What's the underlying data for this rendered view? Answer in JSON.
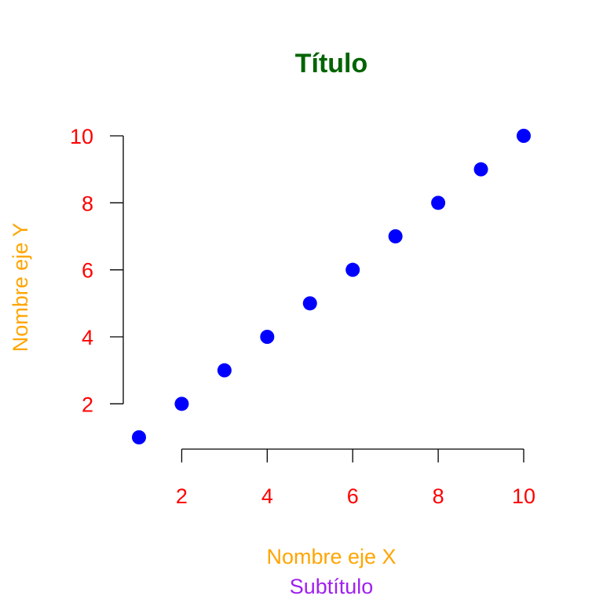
{
  "chart_data": {
    "type": "scatter",
    "title": "Título",
    "subtitle": "Subtítulo",
    "xlabel": "Nombre eje X",
    "ylabel": "Nombre eje Y",
    "x": [
      1,
      2,
      3,
      4,
      5,
      6,
      7,
      8,
      9,
      10
    ],
    "y": [
      1,
      2,
      3,
      4,
      5,
      6,
      7,
      8,
      9,
      10
    ],
    "xticks": [
      "2",
      "4",
      "6",
      "8",
      "10"
    ],
    "yticks": [
      "2",
      "4",
      "6",
      "8",
      "10"
    ],
    "xlim": [
      1,
      10
    ],
    "ylim": [
      1,
      10
    ],
    "grid": false,
    "legend": "none",
    "colors": {
      "title": "#006400",
      "subtitle": "#A020F0",
      "axis_labels": "#FFA500",
      "tick_labels": "#FF0000",
      "points": "#0000FF"
    }
  }
}
